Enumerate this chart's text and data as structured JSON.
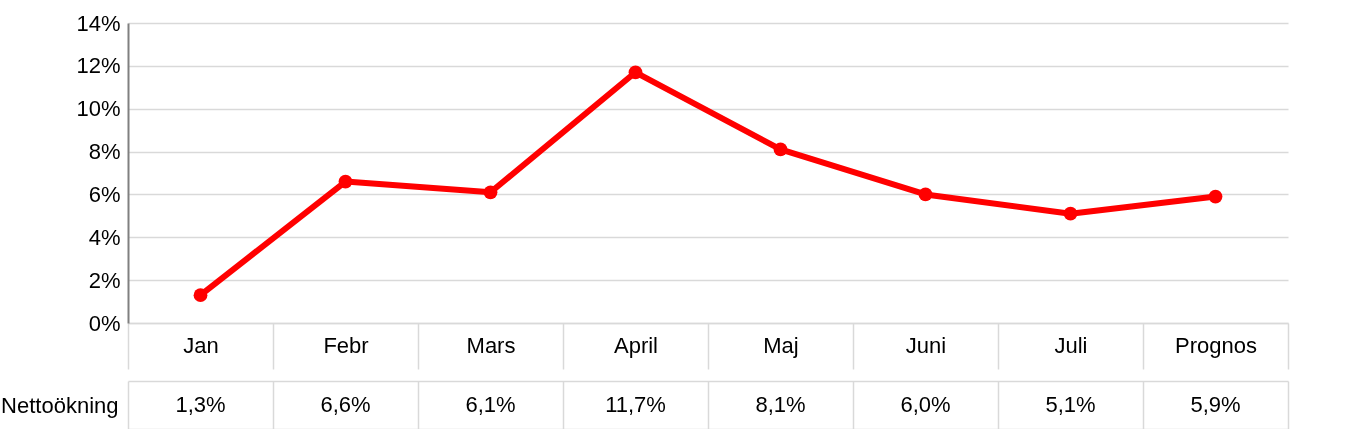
{
  "chart_data": {
    "type": "line",
    "categories": [
      "Jan",
      "Febr",
      "Mars",
      "April",
      "Maj",
      "Juni",
      "Juli",
      "Prognos"
    ],
    "series": [
      {
        "name": "Nettoökning",
        "color": "#ff0000",
        "values": [
          1.3,
          6.6,
          6.1,
          11.7,
          8.1,
          6.0,
          5.1,
          5.9
        ],
        "value_labels": [
          "1,3%",
          "6,6%",
          "6,1%",
          "11,7%",
          "8,1%",
          "6,0%",
          "5,1%",
          "5,9%"
        ]
      }
    ],
    "ylim": [
      0,
      14
    ],
    "yticks": [
      {
        "value": 0,
        "label": "0%"
      },
      {
        "value": 2,
        "label": "2%"
      },
      {
        "value": 4,
        "label": "4%"
      },
      {
        "value": 6,
        "label": "6%"
      },
      {
        "value": 8,
        "label": "8%"
      },
      {
        "value": 10,
        "label": "10%"
      },
      {
        "value": 12,
        "label": "12%"
      },
      {
        "value": 14,
        "label": "14%"
      }
    ],
    "grid": "y",
    "marker": "circle",
    "line_style": "solid"
  }
}
